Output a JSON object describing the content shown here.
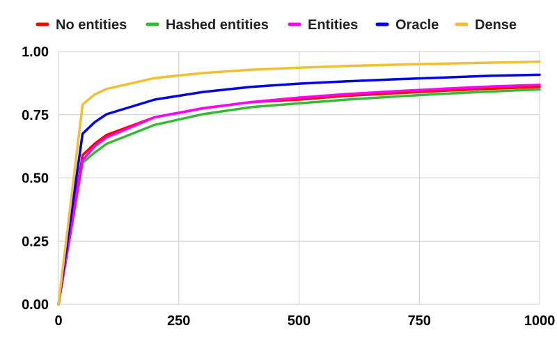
{
  "chart_data": {
    "type": "line",
    "title": "",
    "xlabel": "",
    "ylabel": "",
    "xlim": [
      0,
      1000
    ],
    "ylim": [
      0,
      1
    ],
    "x_ticks": [
      0,
      250,
      500,
      750,
      1000
    ],
    "y_ticks": [
      0,
      0.25,
      0.5,
      0.75,
      1
    ],
    "x_tick_labels": [
      "0",
      "250",
      "500",
      "750",
      "1000"
    ],
    "y_tick_labels": [
      "0.00",
      "0.25",
      "0.50",
      "0.75",
      "1.00"
    ],
    "grid": true,
    "legend_position": "top",
    "x": [
      0,
      50,
      75,
      100,
      200,
      300,
      400,
      500,
      600,
      700,
      800,
      900,
      1000
    ],
    "series": [
      {
        "name": "No entities",
        "color": "#ff0000",
        "values": [
          0,
          0.59,
          0.635,
          0.67,
          0.74,
          0.775,
          0.8,
          0.81,
          0.825,
          0.835,
          0.845,
          0.853,
          0.86
        ]
      },
      {
        "name": "Hashed entities",
        "color": "#33bb33",
        "values": [
          0,
          0.56,
          0.6,
          0.635,
          0.71,
          0.752,
          0.78,
          0.795,
          0.81,
          0.822,
          0.833,
          0.842,
          0.85
        ]
      },
      {
        "name": "Entities",
        "color": "#ff00ff",
        "values": [
          0,
          0.57,
          0.625,
          0.66,
          0.74,
          0.776,
          0.8,
          0.818,
          0.832,
          0.843,
          0.853,
          0.862,
          0.868
        ]
      },
      {
        "name": "Oracle",
        "color": "#0000ee",
        "values": [
          0,
          0.675,
          0.72,
          0.752,
          0.81,
          0.84,
          0.86,
          0.873,
          0.882,
          0.89,
          0.897,
          0.904,
          0.908
        ]
      },
      {
        "name": "Dense",
        "color": "#f0c030",
        "values": [
          0,
          0.79,
          0.83,
          0.852,
          0.895,
          0.915,
          0.928,
          0.936,
          0.943,
          0.948,
          0.952,
          0.956,
          0.96
        ]
      }
    ]
  }
}
